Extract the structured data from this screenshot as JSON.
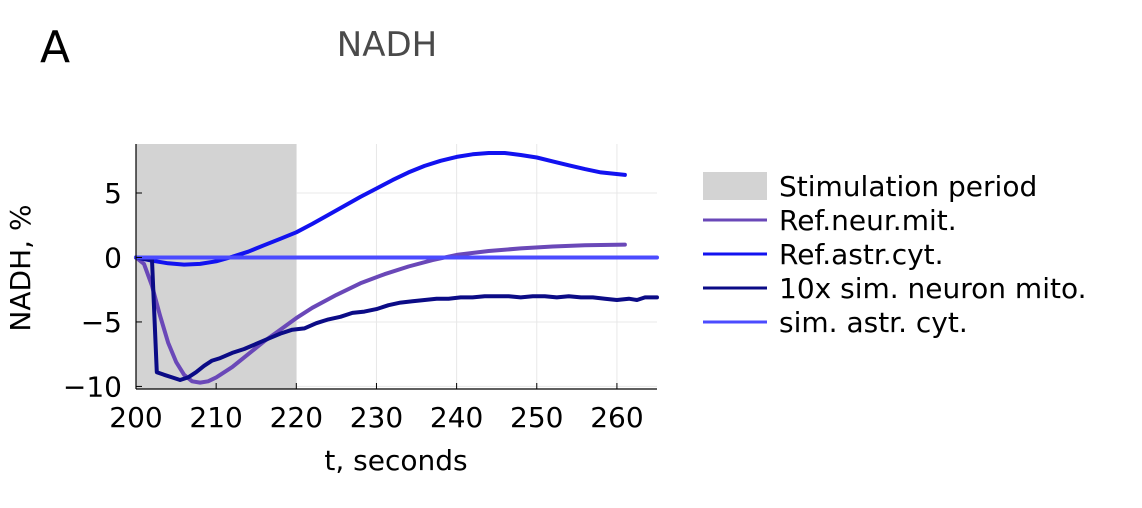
{
  "panel_label": "A",
  "chart_data": {
    "type": "line",
    "title": "NADH",
    "xlabel": "t, seconds",
    "ylabel": "NADH, %",
    "xlim": [
      200,
      265
    ],
    "ylim": [
      -10.2,
      8.8
    ],
    "xticks": [
      200,
      210,
      220,
      230,
      240,
      250,
      260
    ],
    "xtick_labels": [
      "200",
      "210",
      "220",
      "230",
      "240",
      "250",
      "260"
    ],
    "yticks": [
      5,
      0,
      -5,
      -10
    ],
    "ytick_labels": [
      "5",
      "0",
      "−5",
      "−10"
    ],
    "grid": true,
    "legend_position": "right",
    "shaded_regions": [
      {
        "name": "Stimulation period",
        "x_start": 200,
        "x_end": 220,
        "color": "#d3d3d3"
      }
    ],
    "series": [
      {
        "name": "Ref.neur.mit.",
        "color": "#6a48b8",
        "x": [
          200,
          201,
          202,
          203,
          204,
          205,
          206,
          207,
          208,
          209,
          210,
          212,
          214,
          216,
          218,
          220,
          222,
          225,
          228,
          231,
          234,
          237,
          240,
          244,
          248,
          252,
          256,
          261
        ],
        "y": [
          0,
          -0.5,
          -2.2,
          -4.5,
          -6.6,
          -8.1,
          -9.1,
          -9.6,
          -9.7,
          -9.6,
          -9.3,
          -8.5,
          -7.5,
          -6.5,
          -5.6,
          -4.7,
          -3.9,
          -2.9,
          -2.0,
          -1.3,
          -0.7,
          -0.2,
          0.2,
          0.5,
          0.7,
          0.85,
          0.95,
          1.0
        ]
      },
      {
        "name": "Ref.astr.cyt.",
        "color": "#1212f0",
        "x": [
          200,
          202,
          204,
          206,
          208,
          210,
          212,
          214,
          216,
          218,
          220,
          222,
          224,
          226,
          228,
          230,
          232,
          234,
          236,
          238,
          240,
          242,
          244,
          246,
          248,
          250,
          252,
          254,
          256,
          258,
          261
        ],
        "y": [
          0,
          -0.25,
          -0.45,
          -0.55,
          -0.5,
          -0.3,
          0.05,
          0.45,
          0.95,
          1.45,
          1.95,
          2.6,
          3.3,
          4.0,
          4.7,
          5.35,
          6.0,
          6.6,
          7.1,
          7.5,
          7.8,
          8.0,
          8.1,
          8.1,
          7.95,
          7.75,
          7.45,
          7.15,
          6.85,
          6.6,
          6.4
        ]
      },
      {
        "name": "10x sim. neuron mito.",
        "color": "#0b0b86",
        "x": [
          200,
          202,
          202.6,
          203.5,
          204.5,
          205.5,
          206.5,
          207.5,
          208.5,
          209.5,
          210.5,
          212,
          213.5,
          215,
          216.5,
          218,
          219.5,
          221,
          222.5,
          224,
          225.5,
          227,
          228.5,
          230,
          231.5,
          233,
          234.5,
          236,
          237.5,
          239,
          240.5,
          242,
          243.5,
          245,
          246.5,
          248,
          249.5,
          251,
          252.5,
          254,
          255.5,
          257,
          258.5,
          260,
          261.5,
          262.5,
          263.5,
          265
        ],
        "y": [
          0,
          -0.2,
          -8.9,
          -9.1,
          -9.3,
          -9.5,
          -9.3,
          -8.9,
          -8.4,
          -8.0,
          -7.8,
          -7.4,
          -7.1,
          -6.7,
          -6.3,
          -5.9,
          -5.6,
          -5.5,
          -5.1,
          -4.8,
          -4.6,
          -4.3,
          -4.2,
          -4.0,
          -3.7,
          -3.5,
          -3.4,
          -3.3,
          -3.2,
          -3.2,
          -3.1,
          -3.1,
          -3.0,
          -3.0,
          -3.0,
          -3.1,
          -3.0,
          -3.0,
          -3.1,
          -3.0,
          -3.1,
          -3.1,
          -3.2,
          -3.3,
          -3.2,
          -3.3,
          -3.1,
          -3.1
        ]
      },
      {
        "name": "sim. astr. cyt.",
        "color": "#4b4bff",
        "x": [
          200,
          265
        ],
        "y": [
          0,
          0
        ]
      }
    ]
  },
  "colors": {
    "stimulation": "#d3d3d3",
    "grid": "#e8e8e8",
    "axis": "#000000",
    "title": "#4a4a4a"
  }
}
